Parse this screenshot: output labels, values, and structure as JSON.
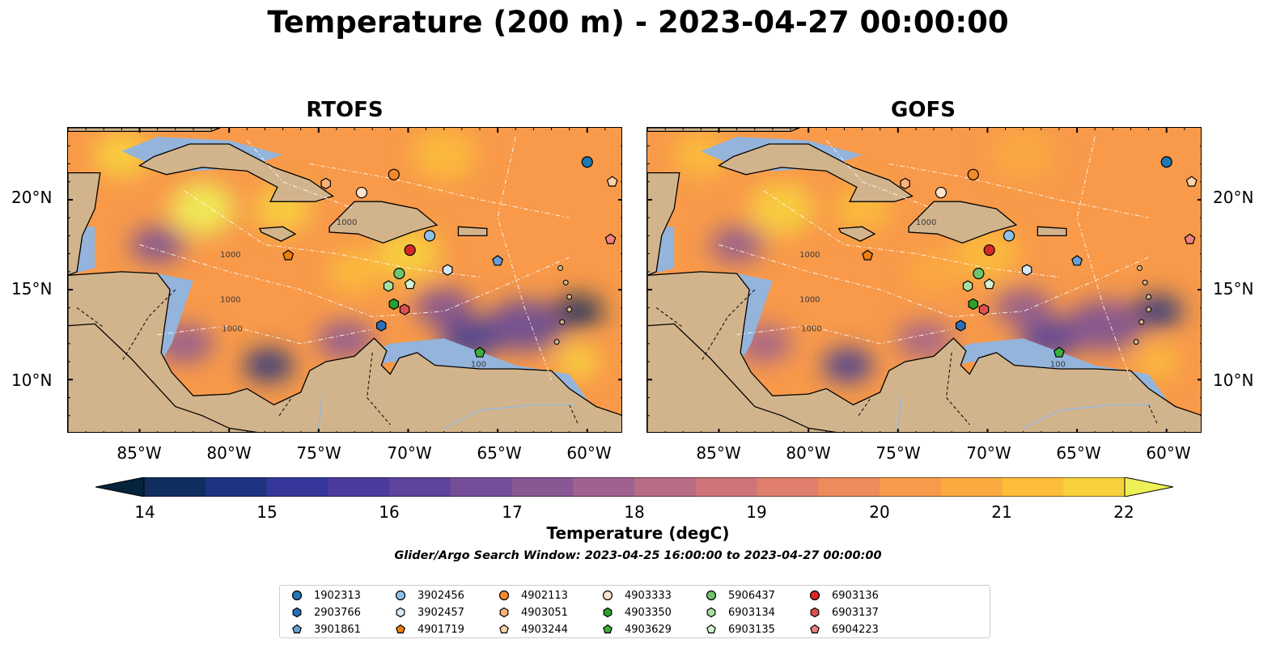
{
  "title": "Temperature (200 m) - 2023-04-27 00:00:00",
  "panels": [
    {
      "title": "RTOFS"
    },
    {
      "title": "GOFS"
    }
  ],
  "map": {
    "lon_range": [
      -89,
      -58
    ],
    "lat_range": [
      7,
      24
    ],
    "lat_labels": [
      "20°N",
      "15°N",
      "10°N"
    ],
    "lon_labels": [
      "85°W",
      "80°W",
      "75°W",
      "70°W",
      "65°W",
      "60°W"
    ],
    "contour_labels": [
      "1000",
      "1000",
      "1000",
      "1000",
      "100"
    ],
    "land_color": "#d2b48c",
    "shelf_color": "#94b4dc",
    "deep_color": "#0a2a3a"
  },
  "colorbar": {
    "label": "Temperature (degC)",
    "ticks": [
      "14",
      "15",
      "16",
      "17",
      "18",
      "19",
      "20",
      "21",
      "22"
    ],
    "range": [
      14,
      22
    ],
    "colormap": [
      "#05233a",
      "#102e5e",
      "#1f3380",
      "#35389a",
      "#4a3c9e",
      "#5e449c",
      "#754e99",
      "#8a5795",
      "#a0618e",
      "#b76b85",
      "#cc747a",
      "#de7e6b",
      "#ed8b5a",
      "#f89a4a",
      "#fbaa40",
      "#fbbd3a",
      "#f7d13e",
      "#eef058"
    ]
  },
  "subtitle": "Glider/Argo Search Window: 2023-04-25 16:00:00 to 2023-04-27 00:00:00",
  "floats": [
    {
      "id": "1902313",
      "marker": "circle",
      "color": "#1f77b4",
      "lon": -60.0,
      "lat": 22.1
    },
    {
      "id": "2903766",
      "marker": "hexagon",
      "color": "#2a6fb8",
      "lon": -71.5,
      "lat": 13.0
    },
    {
      "id": "3901861",
      "marker": "pentagon",
      "color": "#6a9fd6",
      "lon": -65.0,
      "lat": 16.6
    },
    {
      "id": "3902456",
      "marker": "circle",
      "color": "#8fc0e8",
      "lon": -68.8,
      "lat": 18.0
    },
    {
      "id": "3902457",
      "marker": "hexagon",
      "color": "#d4e8f8",
      "lon": -67.8,
      "lat": 16.1
    },
    {
      "id": "4901719",
      "marker": "pentagon",
      "color": "#f07f0e",
      "lon": -76.7,
      "lat": 16.9
    },
    {
      "id": "4902113",
      "marker": "circle",
      "color": "#f58a2a",
      "lon": -70.8,
      "lat": 21.4
    },
    {
      "id": "4903051",
      "marker": "hexagon",
      "color": "#fbb37a",
      "lon": -74.6,
      "lat": 20.9
    },
    {
      "id": "4903244",
      "marker": "pentagon",
      "color": "#fdd2a6",
      "lon": -58.6,
      "lat": 21.0
    },
    {
      "id": "4903333",
      "marker": "circle",
      "color": "#fde3cc",
      "lon": -72.6,
      "lat": 20.4
    },
    {
      "id": "4903350",
      "marker": "hexagon",
      "color": "#2ca02c",
      "lon": -70.8,
      "lat": 14.2
    },
    {
      "id": "4903629",
      "marker": "pentagon",
      "color": "#3cae3c",
      "lon": -66.0,
      "lat": 11.5
    },
    {
      "id": "5906437",
      "marker": "circle",
      "color": "#6fc46f",
      "lon": -70.5,
      "lat": 15.9
    },
    {
      "id": "6903134",
      "marker": "hexagon",
      "color": "#a8e0a0",
      "lon": -71.1,
      "lat": 15.2
    },
    {
      "id": "6903135",
      "marker": "pentagon",
      "color": "#d4f2cf",
      "lon": -69.9,
      "lat": 15.3
    },
    {
      "id": "6903136",
      "marker": "circle",
      "color": "#d62728",
      "lon": -69.9,
      "lat": 17.2
    },
    {
      "id": "6903137",
      "marker": "hexagon",
      "color": "#e05050",
      "lon": -70.2,
      "lat": 13.9
    },
    {
      "id": "6904223",
      "marker": "pentagon",
      "color": "#f08080",
      "lon": -58.7,
      "lat": 17.8
    }
  ]
}
